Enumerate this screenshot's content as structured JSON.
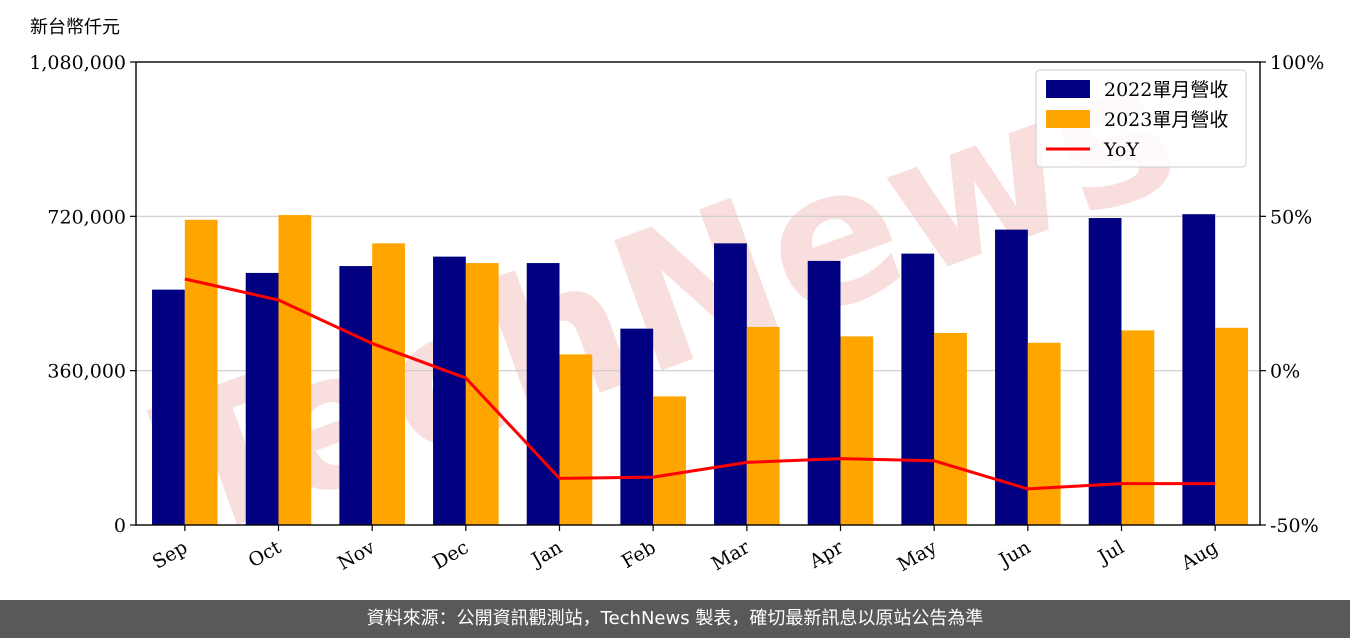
{
  "unit_label": "新台幣仟元",
  "footer_text": "資料來源：公開資訊觀測站，TechNews 製表，確切最新訊息以原站公告為準",
  "watermark_text": "TechNews",
  "colors": {
    "series_2022": "#000080",
    "series_2023": "#FFA500",
    "yoy": "#FF0000",
    "grid": "#cccccc",
    "footer_bg": "#595959",
    "watermark": "#f2b8b8"
  },
  "chart_data": {
    "type": "bar",
    "categories": [
      "Sep",
      "Oct",
      "Nov",
      "Dec",
      "Jan",
      "Feb",
      "Mar",
      "Apr",
      "May",
      "Jun",
      "Jul",
      "Aug"
    ],
    "series": [
      {
        "name": "2022單月營收",
        "type": "bar",
        "axis": "left",
        "values": [
          549000,
          588000,
          604000,
          626000,
          611000,
          458000,
          657000,
          616000,
          633000,
          689000,
          716000,
          725000
        ]
      },
      {
        "name": "2023單月營收",
        "type": "bar",
        "axis": "left",
        "values": [
          712000,
          723000,
          657000,
          611000,
          398000,
          300000,
          462000,
          440000,
          448000,
          425000,
          454000,
          460000
        ]
      },
      {
        "name": "YoY",
        "type": "line",
        "axis": "right",
        "values": [
          29.7,
          22.9,
          8.8,
          -2.4,
          -34.9,
          -34.5,
          -29.7,
          -28.5,
          -29.2,
          -38.3,
          -36.6,
          -36.6
        ]
      }
    ],
    "y_left": {
      "ylim": [
        0,
        1080000
      ],
      "ticks": [
        "0",
        "360,000",
        "720,000",
        "1,080,000"
      ]
    },
    "y_right": {
      "ylim": [
        -50,
        100
      ],
      "ticks": [
        "-50%",
        "0%",
        "50%",
        "100%"
      ]
    },
    "grid": "horizontal",
    "legend": "top-right"
  }
}
